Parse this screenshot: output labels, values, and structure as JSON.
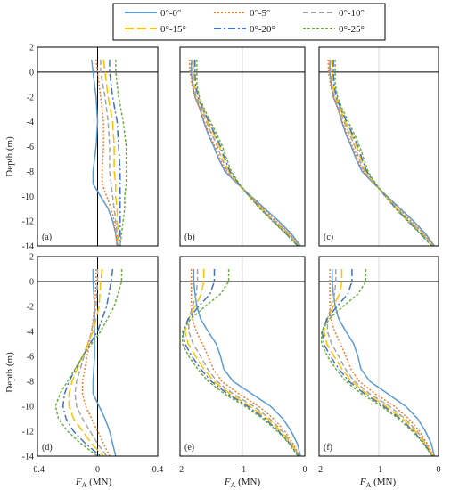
{
  "legend": {
    "entries": [
      {
        "label": "0°-0°",
        "color": "#5b9bd5",
        "dash": "solid"
      },
      {
        "label": "0°-5°",
        "color": "#ed7d31",
        "dash": "2 2"
      },
      {
        "label": "0°-10°",
        "color": "#a5a5a5",
        "dash": "6 3"
      },
      {
        "label": "0°-15°",
        "color": "#ffc000",
        "dash": "10 4"
      },
      {
        "label": "0°-20°",
        "color": "#4472c4",
        "dash": "8 3 2 3"
      },
      {
        "label": "0°-25°",
        "color": "#70ad47",
        "dash": "3 2"
      }
    ]
  },
  "y_axis_label": "Depth (m)",
  "x_axis_label_main": "F",
  "x_axis_label_sub": "A",
  "x_axis_label_unit": " (MN)",
  "chart_data": [
    {
      "type": "line",
      "panel": "(a)",
      "xlim": [
        -0.4,
        0.4
      ],
      "ylim": [
        -14,
        2
      ],
      "xticks": [
        "-0.4",
        "0",
        "0.4"
      ],
      "xtick_values": [
        -0.4,
        0,
        0.4
      ],
      "yticks": [
        -14,
        -12,
        -10,
        -8,
        -6,
        -4,
        -2,
        0,
        2
      ],
      "grid": "vertical",
      "depth": [
        1,
        0,
        -2,
        -4,
        -6,
        -8,
        -9,
        -10,
        -11,
        -12,
        -13,
        -14
      ],
      "series": [
        {
          "name": "0°-0°",
          "values": [
            -0.04,
            -0.03,
            -0.01,
            0.0,
            -0.01,
            -0.03,
            -0.03,
            0.02,
            0.07,
            0.1,
            0.12,
            0.13
          ]
        },
        {
          "name": "0°-5°",
          "values": [
            -0.01,
            0.0,
            0.02,
            0.04,
            0.04,
            0.03,
            0.03,
            0.06,
            0.09,
            0.11,
            0.12,
            0.13
          ]
        },
        {
          "name": "0°-10°",
          "values": [
            0.02,
            0.02,
            0.05,
            0.07,
            0.08,
            0.08,
            0.09,
            0.1,
            0.11,
            0.12,
            0.13,
            0.14
          ]
        },
        {
          "name": "0°-15°",
          "values": [
            0.04,
            0.05,
            0.07,
            0.1,
            0.11,
            0.11,
            0.12,
            0.12,
            0.13,
            0.13,
            0.14,
            0.14
          ]
        },
        {
          "name": "0°-20°",
          "values": [
            0.08,
            0.08,
            0.1,
            0.13,
            0.14,
            0.15,
            0.15,
            0.15,
            0.15,
            0.15,
            0.15,
            0.15
          ]
        },
        {
          "name": "0°-25°",
          "values": [
            0.12,
            0.12,
            0.14,
            0.17,
            0.19,
            0.19,
            0.19,
            0.18,
            0.18,
            0.17,
            0.16,
            0.15
          ]
        }
      ]
    },
    {
      "type": "line",
      "panel": "(b)",
      "xlim": [
        -2,
        0
      ],
      "ylim": [
        -14,
        2
      ],
      "xticks": [
        "-2",
        "-1",
        "0"
      ],
      "xtick_values": [
        -2,
        -1,
        0
      ],
      "yticks": [
        -14,
        -12,
        -10,
        -8,
        -6,
        -4,
        -2,
        0,
        2
      ],
      "grid": "vertical",
      "depth": [
        1,
        0,
        -1,
        -2,
        -3,
        -4,
        -5,
        -6,
        -7,
        -8,
        -9,
        -10,
        -11,
        -12,
        -13,
        -14
      ],
      "series": [
        {
          "name": "0°-0°",
          "values": [
            -1.82,
            -1.82,
            -1.8,
            -1.76,
            -1.68,
            -1.62,
            -1.55,
            -1.46,
            -1.38,
            -1.28,
            -1.08,
            -0.86,
            -0.64,
            -0.42,
            -0.22,
            -0.07
          ]
        },
        {
          "name": "0°-5°",
          "values": [
            -1.85,
            -1.84,
            -1.81,
            -1.76,
            -1.68,
            -1.61,
            -1.53,
            -1.44,
            -1.36,
            -1.26,
            -1.07,
            -0.87,
            -0.67,
            -0.46,
            -0.25,
            -0.08
          ]
        },
        {
          "name": "0°-10°",
          "values": [
            -1.81,
            -1.81,
            -1.79,
            -1.74,
            -1.66,
            -1.58,
            -1.49,
            -1.4,
            -1.33,
            -1.24,
            -1.07,
            -0.88,
            -0.69,
            -0.48,
            -0.26,
            -0.09
          ]
        },
        {
          "name": "0°-15°",
          "values": [
            -1.78,
            -1.78,
            -1.77,
            -1.72,
            -1.64,
            -1.56,
            -1.46,
            -1.37,
            -1.3,
            -1.22,
            -1.07,
            -0.89,
            -0.7,
            -0.5,
            -0.28,
            -0.1
          ]
        },
        {
          "name": "0°-20°",
          "values": [
            -1.76,
            -1.76,
            -1.75,
            -1.71,
            -1.63,
            -1.54,
            -1.44,
            -1.35,
            -1.28,
            -1.2,
            -1.06,
            -0.89,
            -0.71,
            -0.51,
            -0.3,
            -0.11
          ]
        },
        {
          "name": "0°-25°",
          "values": [
            -1.73,
            -1.73,
            -1.73,
            -1.69,
            -1.61,
            -1.51,
            -1.41,
            -1.32,
            -1.25,
            -1.18,
            -1.05,
            -0.89,
            -0.72,
            -0.52,
            -0.31,
            -0.12
          ]
        }
      ]
    },
    {
      "type": "line",
      "panel": "(c)",
      "xlim": [
        -2,
        0
      ],
      "ylim": [
        -14,
        2
      ],
      "xticks": [
        "-2",
        "-1",
        "0"
      ],
      "xtick_values": [
        -2,
        -1,
        0
      ],
      "yticks": [
        -14,
        -12,
        -10,
        -8,
        -6,
        -4,
        -2,
        0,
        2
      ],
      "grid": "vertical",
      "depth": [
        1,
        0,
        -1,
        -2,
        -3,
        -4,
        -5,
        -6,
        -7,
        -8,
        -9,
        -10,
        -11,
        -12,
        -13,
        -14
      ],
      "series": [
        {
          "name": "0°-0°",
          "values": [
            -1.82,
            -1.82,
            -1.8,
            -1.76,
            -1.68,
            -1.62,
            -1.55,
            -1.46,
            -1.38,
            -1.28,
            -1.08,
            -0.86,
            -0.64,
            -0.42,
            -0.22,
            -0.07
          ]
        },
        {
          "name": "0°-5°",
          "values": [
            -1.85,
            -1.84,
            -1.81,
            -1.76,
            -1.68,
            -1.61,
            -1.53,
            -1.44,
            -1.36,
            -1.26,
            -1.07,
            -0.87,
            -0.67,
            -0.46,
            -0.25,
            -0.08
          ]
        },
        {
          "name": "0°-10°",
          "values": [
            -1.81,
            -1.81,
            -1.79,
            -1.74,
            -1.66,
            -1.58,
            -1.49,
            -1.4,
            -1.33,
            -1.24,
            -1.07,
            -0.88,
            -0.69,
            -0.48,
            -0.26,
            -0.09
          ]
        },
        {
          "name": "0°-15°",
          "values": [
            -1.78,
            -1.78,
            -1.77,
            -1.72,
            -1.64,
            -1.56,
            -1.46,
            -1.37,
            -1.3,
            -1.22,
            -1.07,
            -0.89,
            -0.7,
            -0.5,
            -0.28,
            -0.1
          ]
        },
        {
          "name": "0°-20°",
          "values": [
            -1.76,
            -1.76,
            -1.75,
            -1.71,
            -1.63,
            -1.54,
            -1.44,
            -1.35,
            -1.28,
            -1.2,
            -1.06,
            -0.89,
            -0.71,
            -0.51,
            -0.3,
            -0.11
          ]
        },
        {
          "name": "0°-25°",
          "values": [
            -1.73,
            -1.73,
            -1.73,
            -1.69,
            -1.61,
            -1.51,
            -1.41,
            -1.32,
            -1.25,
            -1.18,
            -1.05,
            -0.89,
            -0.72,
            -0.52,
            -0.31,
            -0.12
          ]
        }
      ]
    },
    {
      "type": "line",
      "panel": "(d)",
      "xlim": [
        -0.4,
        0.4
      ],
      "ylim": [
        -14,
        2
      ],
      "xticks": [
        "-0.4",
        "0",
        "0.4"
      ],
      "xtick_values": [
        -0.4,
        0,
        0.4
      ],
      "yticks": [
        -14,
        -12,
        -10,
        -8,
        -6,
        -4,
        -2,
        0,
        2
      ],
      "grid": "vertical",
      "depth": [
        1,
        0,
        -2,
        -4,
        -6,
        -8,
        -9,
        -10,
        -11,
        -12,
        -13,
        -14
      ],
      "series": [
        {
          "name": "0°-0°",
          "values": [
            -0.03,
            -0.03,
            -0.02,
            -0.02,
            -0.02,
            -0.03,
            -0.03,
            0.01,
            0.05,
            0.08,
            0.1,
            0.12
          ]
        },
        {
          "name": "0°-5°",
          "values": [
            -0.01,
            -0.01,
            -0.02,
            -0.04,
            -0.07,
            -0.1,
            -0.1,
            -0.08,
            -0.04,
            0.0,
            0.04,
            0.08
          ]
        },
        {
          "name": "0°-10°",
          "values": [
            0.0,
            0.0,
            -0.01,
            -0.04,
            -0.09,
            -0.14,
            -0.15,
            -0.14,
            -0.1,
            -0.05,
            0.0,
            0.06
          ]
        },
        {
          "name": "0°-15°",
          "values": [
            0.03,
            0.02,
            0.01,
            -0.03,
            -0.1,
            -0.17,
            -0.19,
            -0.19,
            -0.16,
            -0.1,
            -0.04,
            0.04
          ]
        },
        {
          "name": "0°-20°",
          "values": [
            0.1,
            0.09,
            0.06,
            0.0,
            -0.1,
            -0.19,
            -0.22,
            -0.23,
            -0.21,
            -0.16,
            -0.08,
            0.02
          ]
        },
        {
          "name": "0°-25°",
          "values": [
            0.16,
            0.16,
            0.11,
            0.02,
            -0.1,
            -0.2,
            -0.25,
            -0.28,
            -0.26,
            -0.2,
            -0.11,
            0.0
          ]
        }
      ]
    },
    {
      "type": "line",
      "panel": "(e)",
      "xlim": [
        -2,
        0
      ],
      "ylim": [
        -14,
        2
      ],
      "xticks": [
        "-2",
        "-1",
        "0"
      ],
      "xtick_values": [
        -2,
        -1,
        0
      ],
      "yticks": [
        -14,
        -12,
        -10,
        -8,
        -6,
        -4,
        -2,
        0,
        2
      ],
      "grid": "vertical",
      "depth": [
        1,
        0,
        -1,
        -2,
        -3,
        -4,
        -5,
        -6,
        -7,
        -8,
        -9,
        -10,
        -11,
        -12,
        -13,
        -14
      ],
      "series": [
        {
          "name": "0°-0°",
          "values": [
            -1.78,
            -1.78,
            -1.76,
            -1.73,
            -1.67,
            -1.55,
            -1.42,
            -1.35,
            -1.3,
            -1.15,
            -0.85,
            -0.55,
            -0.35,
            -0.22,
            -0.12,
            -0.07
          ]
        },
        {
          "name": "0°-5°",
          "values": [
            -1.82,
            -1.82,
            -1.82,
            -1.82,
            -1.8,
            -1.74,
            -1.64,
            -1.55,
            -1.47,
            -1.33,
            -1.06,
            -0.74,
            -0.5,
            -0.32,
            -0.19,
            -0.08
          ]
        },
        {
          "name": "0°-10°",
          "values": [
            -1.72,
            -1.72,
            -1.74,
            -1.8,
            -1.86,
            -1.86,
            -1.79,
            -1.67,
            -1.56,
            -1.41,
            -1.15,
            -0.82,
            -0.56,
            -0.36,
            -0.21,
            -0.09
          ]
        },
        {
          "name": "0°-15°",
          "values": [
            -1.62,
            -1.62,
            -1.66,
            -1.76,
            -1.87,
            -1.92,
            -1.87,
            -1.75,
            -1.62,
            -1.46,
            -1.2,
            -0.88,
            -0.6,
            -0.39,
            -0.22,
            -0.09
          ]
        },
        {
          "name": "0°-20°",
          "values": [
            -1.45,
            -1.45,
            -1.52,
            -1.7,
            -1.87,
            -1.95,
            -1.92,
            -1.81,
            -1.67,
            -1.5,
            -1.24,
            -0.92,
            -0.64,
            -0.42,
            -0.24,
            -0.1
          ]
        },
        {
          "name": "0°-25°",
          "values": [
            -1.22,
            -1.22,
            -1.35,
            -1.6,
            -1.83,
            -1.96,
            -1.96,
            -1.86,
            -1.72,
            -1.55,
            -1.29,
            -0.96,
            -0.67,
            -0.44,
            -0.25,
            -0.11
          ]
        }
      ]
    },
    {
      "type": "line",
      "panel": "(f)",
      "xlim": [
        -2,
        0
      ],
      "ylim": [
        -14,
        2
      ],
      "xticks": [
        "-2",
        "-1",
        "0"
      ],
      "xtick_values": [
        -2,
        -1,
        0
      ],
      "yticks": [
        -14,
        -12,
        -10,
        -8,
        -6,
        -4,
        -2,
        0,
        2
      ],
      "grid": "vertical",
      "depth": [
        1,
        0,
        -1,
        -2,
        -3,
        -4,
        -5,
        -6,
        -7,
        -8,
        -9,
        -10,
        -11,
        -12,
        -13,
        -14
      ],
      "series": [
        {
          "name": "0°-0°",
          "values": [
            -1.78,
            -1.78,
            -1.76,
            -1.73,
            -1.67,
            -1.55,
            -1.42,
            -1.35,
            -1.3,
            -1.15,
            -0.85,
            -0.55,
            -0.35,
            -0.22,
            -0.12,
            -0.07
          ]
        },
        {
          "name": "0°-5°",
          "values": [
            -1.82,
            -1.82,
            -1.82,
            -1.82,
            -1.8,
            -1.74,
            -1.64,
            -1.55,
            -1.47,
            -1.33,
            -1.06,
            -0.74,
            -0.5,
            -0.32,
            -0.19,
            -0.08
          ]
        },
        {
          "name": "0°-10°",
          "values": [
            -1.72,
            -1.72,
            -1.74,
            -1.8,
            -1.86,
            -1.86,
            -1.79,
            -1.67,
            -1.56,
            -1.41,
            -1.15,
            -0.82,
            -0.56,
            -0.36,
            -0.21,
            -0.09
          ]
        },
        {
          "name": "0°-15°",
          "values": [
            -1.62,
            -1.62,
            -1.66,
            -1.76,
            -1.87,
            -1.92,
            -1.87,
            -1.75,
            -1.62,
            -1.46,
            -1.2,
            -0.88,
            -0.6,
            -0.39,
            -0.22,
            -0.09
          ]
        },
        {
          "name": "0°-20°",
          "values": [
            -1.45,
            -1.45,
            -1.52,
            -1.7,
            -1.87,
            -1.95,
            -1.92,
            -1.81,
            -1.67,
            -1.5,
            -1.24,
            -0.92,
            -0.64,
            -0.42,
            -0.24,
            -0.1
          ]
        },
        {
          "name": "0°-25°",
          "values": [
            -1.22,
            -1.22,
            -1.35,
            -1.6,
            -1.83,
            -1.96,
            -1.96,
            -1.86,
            -1.72,
            -1.55,
            -1.29,
            -0.96,
            -0.67,
            -0.44,
            -0.25,
            -0.11
          ]
        }
      ]
    }
  ]
}
